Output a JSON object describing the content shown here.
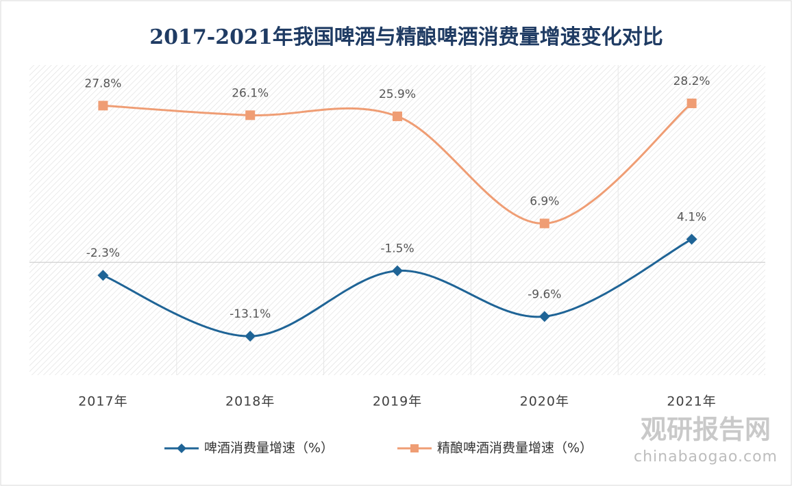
{
  "chart_data": {
    "type": "line",
    "title": "2017-2021年我国啤酒与精酿啤酒消费量增速变化对比",
    "categories": [
      "2017年",
      "2018年",
      "2019年",
      "2020年",
      "2021年"
    ],
    "series": [
      {
        "name": "啤酒消费量增速（%）",
        "color": "#1f6496",
        "marker": "diamond",
        "values": [
          -2.3,
          -13.1,
          -1.5,
          -9.6,
          4.1
        ],
        "value_labels": [
          "-2.3%",
          "-13.1%",
          "-1.5%",
          "-9.6%",
          "4.1%"
        ]
      },
      {
        "name": "精酿啤酒消费量增速（%）",
        "color": "#ef9d74",
        "marker": "square",
        "values": [
          27.8,
          26.1,
          25.9,
          6.9,
          28.2
        ],
        "value_labels": [
          "27.8%",
          "26.1%",
          "25.9%",
          "6.9%",
          "28.2%"
        ]
      }
    ],
    "ylim": [
      -20,
      35
    ],
    "smooth": true
  },
  "watermark": {
    "name": "观研报告网",
    "url": "chinabaogao.com"
  }
}
